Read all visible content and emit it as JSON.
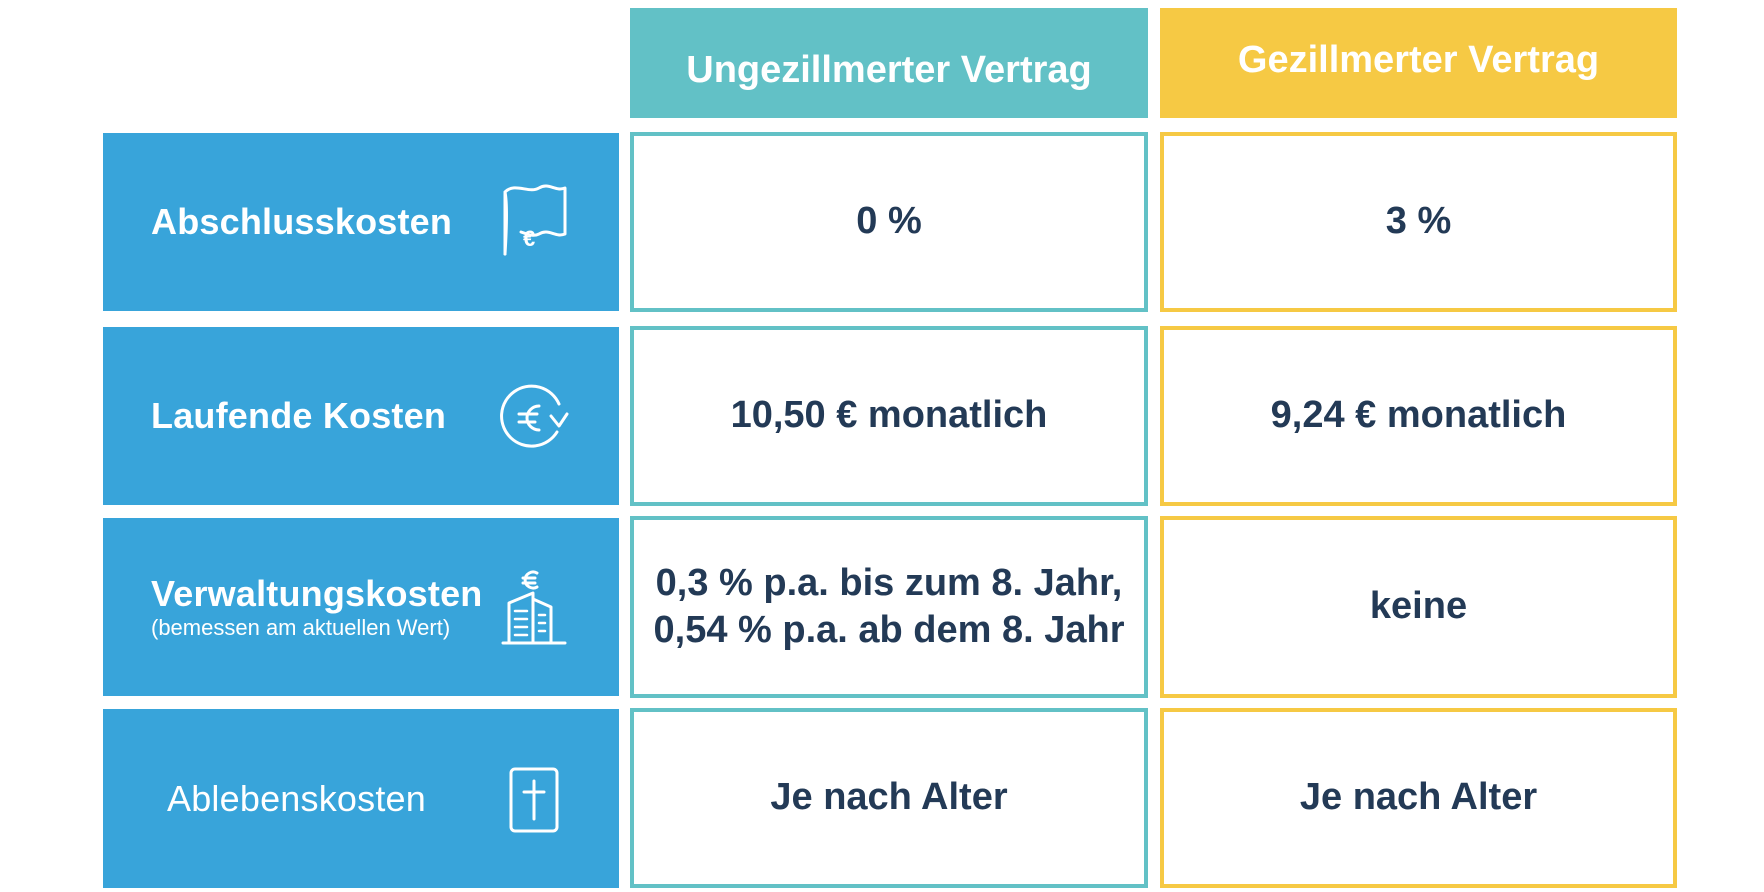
{
  "header": {
    "col_a": "Ungezillmerter Vertrag",
    "col_b": "Gezillmerter Vertrag"
  },
  "colors": {
    "teal": "#62c1c6",
    "yellow": "#f6c944",
    "blue": "#38a4da",
    "text_dark": "#233a56"
  },
  "rows": [
    {
      "label": "Abschlusskosten",
      "icon": "flag-euro-icon",
      "value_a": "0 %",
      "value_b": "3 %"
    },
    {
      "label": "Laufende Kosten",
      "icon": "euro-cycle-icon",
      "value_a": "10,50 € monatlich",
      "value_b": "9,24 € monatlich"
    },
    {
      "label": "Verwaltungskosten",
      "sublabel": "(bemessen am aktuellen Wert)",
      "icon": "building-euro-icon",
      "value_a_line1": "0,3 % p.a. bis zum 8. Jahr,",
      "value_a_line2": "0,54 % p.a. ab dem 8. Jahr",
      "value_b": "keine"
    },
    {
      "label": "Ablebenskosten",
      "icon": "cross-icon",
      "value_a": "Je nach Alter",
      "value_b": "Je nach Alter"
    }
  ]
}
